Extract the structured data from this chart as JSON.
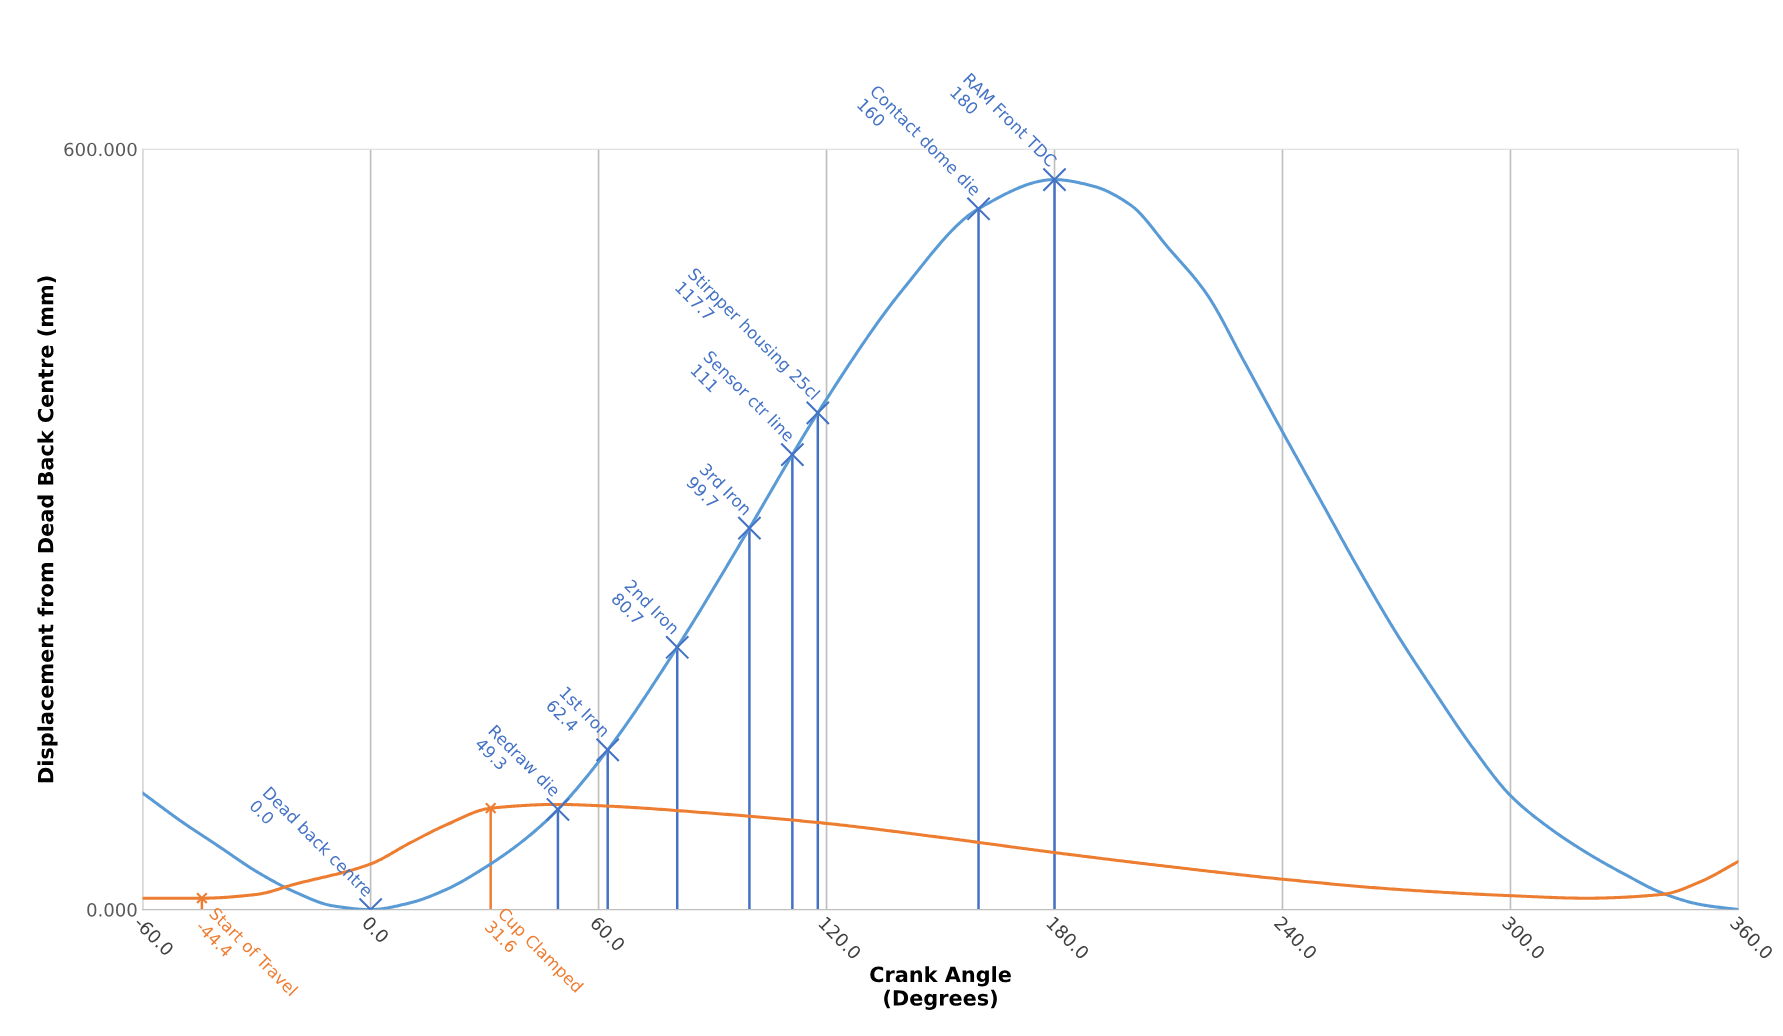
{
  "chart_data": {
    "type": "line",
    "xlabel": "Crank Angle\n(Degrees)",
    "ylabel": "Displacement from Dead Back Centre (mm)",
    "xlim": [
      -60,
      360
    ],
    "xticks": [
      {
        "value": -60,
        "label": "-60.0"
      },
      {
        "value": 0,
        "label": "0.0"
      },
      {
        "value": 60,
        "label": "60.0"
      },
      {
        "value": 120,
        "label": "120.0"
      },
      {
        "value": 180,
        "label": "180.0"
      },
      {
        "value": 240,
        "label": "240.0"
      },
      {
        "value": 300,
        "label": "300.0"
      },
      {
        "value": 360,
        "label": "360.0"
      }
    ],
    "ylim": [
      0,
      600
    ],
    "yticks": [
      {
        "value": 0,
        "label": "0.000"
      },
      {
        "value": 600,
        "label": "600.000"
      }
    ],
    "grid": "x",
    "legend": false,
    "series": [
      {
        "color": "#5b9bd5",
        "x": [
          -60,
          -50,
          -40,
          -30,
          -20,
          -10,
          0,
          10,
          20,
          30,
          40,
          49.3,
          62.4,
          80.7,
          99.7,
          111,
          117.7,
          140,
          160,
          180,
          190,
          200,
          210,
          220,
          230,
          240,
          250,
          260,
          270,
          280,
          290,
          300,
          310,
          320,
          330,
          340,
          350,
          360
        ],
        "values": [
          92,
          70,
          50,
          30,
          14,
          3,
          0,
          5,
          16,
          33,
          54,
          79,
          126,
          207,
          301,
          359,
          392,
          489,
          553,
          576,
          571,
          556,
          522,
          486,
          432,
          377,
          323,
          269,
          218,
          172,
          128,
          90,
          65,
          45,
          28,
          13,
          4,
          0
        ]
      },
      {
        "color": "#ed7d31",
        "x": [
          -60,
          -44.4,
          -30,
          -20,
          0,
          10,
          20,
          31.6,
          49.3,
          60,
          90,
          120,
          150,
          180,
          210,
          240,
          270,
          300,
          320,
          340,
          350,
          360
        ],
        "values": [
          9,
          9,
          12,
          20,
          36,
          52,
          67,
          80,
          83,
          82,
          76,
          68,
          57,
          45,
          34,
          24,
          16,
          11,
          9,
          12,
          22,
          38
        ]
      },
      {
        "type": "lollipop",
        "color": "#4472c4",
        "marker": "cross",
        "x": [
          0,
          49.3,
          62.4,
          80.7,
          99.7,
          111,
          117.7,
          160,
          180
        ],
        "values": [
          0,
          79,
          126,
          207,
          301,
          359,
          392,
          553,
          576
        ]
      },
      {
        "type": "lollipop",
        "color": "#ed7d31",
        "marker": "cross",
        "x": [
          -44.4,
          31.6
        ],
        "values": [
          9,
          80
        ]
      }
    ],
    "annotations": [
      {
        "text": "Dead back centre\n0.0",
        "x": 0,
        "y": 0
      },
      {
        "text": "Redraw die\n49.3",
        "x": 49.3,
        "y": 79
      },
      {
        "text": "1st Iron\n62.4",
        "x": 62.4,
        "y": 126
      },
      {
        "text": "2nd Iron\n80.7",
        "x": 80.7,
        "y": 207
      },
      {
        "text": "3rd Iron\n99.7",
        "x": 99.7,
        "y": 301
      },
      {
        "text": "Sensor ctr line\n111",
        "x": 111,
        "y": 359
      },
      {
        "text": "Stirpper housing 25cl\n117.7",
        "x": 117.7,
        "y": 392
      },
      {
        "text": "Contact dome die\n160",
        "x": 160,
        "y": 553
      },
      {
        "text": "RAM Front TDC\n180",
        "x": 180,
        "y": 576
      },
      "Start of Travel\n-44.4",
      "Cup Clamped\n31.6"
    ]
  }
}
